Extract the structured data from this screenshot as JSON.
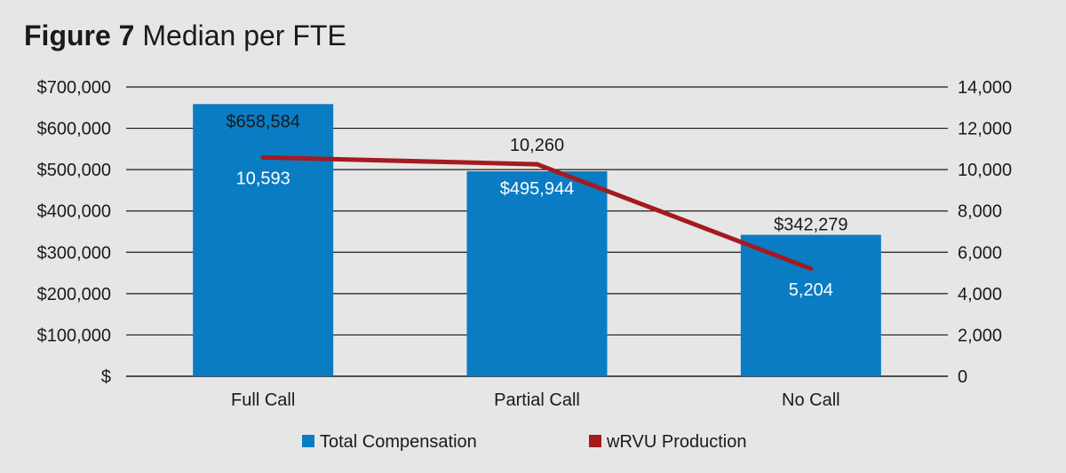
{
  "header": {
    "figure_label": "Figure 7",
    "title_text": "Median per FTE"
  },
  "chart_data": {
    "type": "bar",
    "categories": [
      "Full Call",
      "Partial Call",
      "No Call"
    ],
    "series": [
      {
        "name": "Total Compensation",
        "kind": "bar",
        "axis": "left",
        "color": "#0a7cc4",
        "values": [
          658584,
          495944,
          342279
        ],
        "labels": [
          "$658,584",
          "$495,944",
          "$342,279"
        ]
      },
      {
        "name": "wRVU Production",
        "kind": "line",
        "axis": "right",
        "color": "#a31a1f",
        "values": [
          10593,
          10260,
          5204
        ],
        "labels": [
          "10,593",
          "10,260",
          "5,204"
        ]
      }
    ],
    "y_left": {
      "range": [
        0,
        700000
      ],
      "ticks": [
        0,
        100000,
        200000,
        300000,
        400000,
        500000,
        600000,
        700000
      ],
      "tick_labels": [
        "$",
        "$100,000",
        "$200,000",
        "$300,000",
        "$400,000",
        "$500,000",
        "$600,000",
        "$700,000"
      ]
    },
    "y_right": {
      "range": [
        0,
        14000
      ],
      "ticks": [
        0,
        2000,
        4000,
        6000,
        8000,
        10000,
        12000,
        14000
      ],
      "tick_labels": [
        "0",
        "2,000",
        "4,000",
        "6,000",
        "8,000",
        "10,000",
        "12,000",
        "14,000"
      ]
    },
    "grid": true,
    "legend": "bottom"
  }
}
